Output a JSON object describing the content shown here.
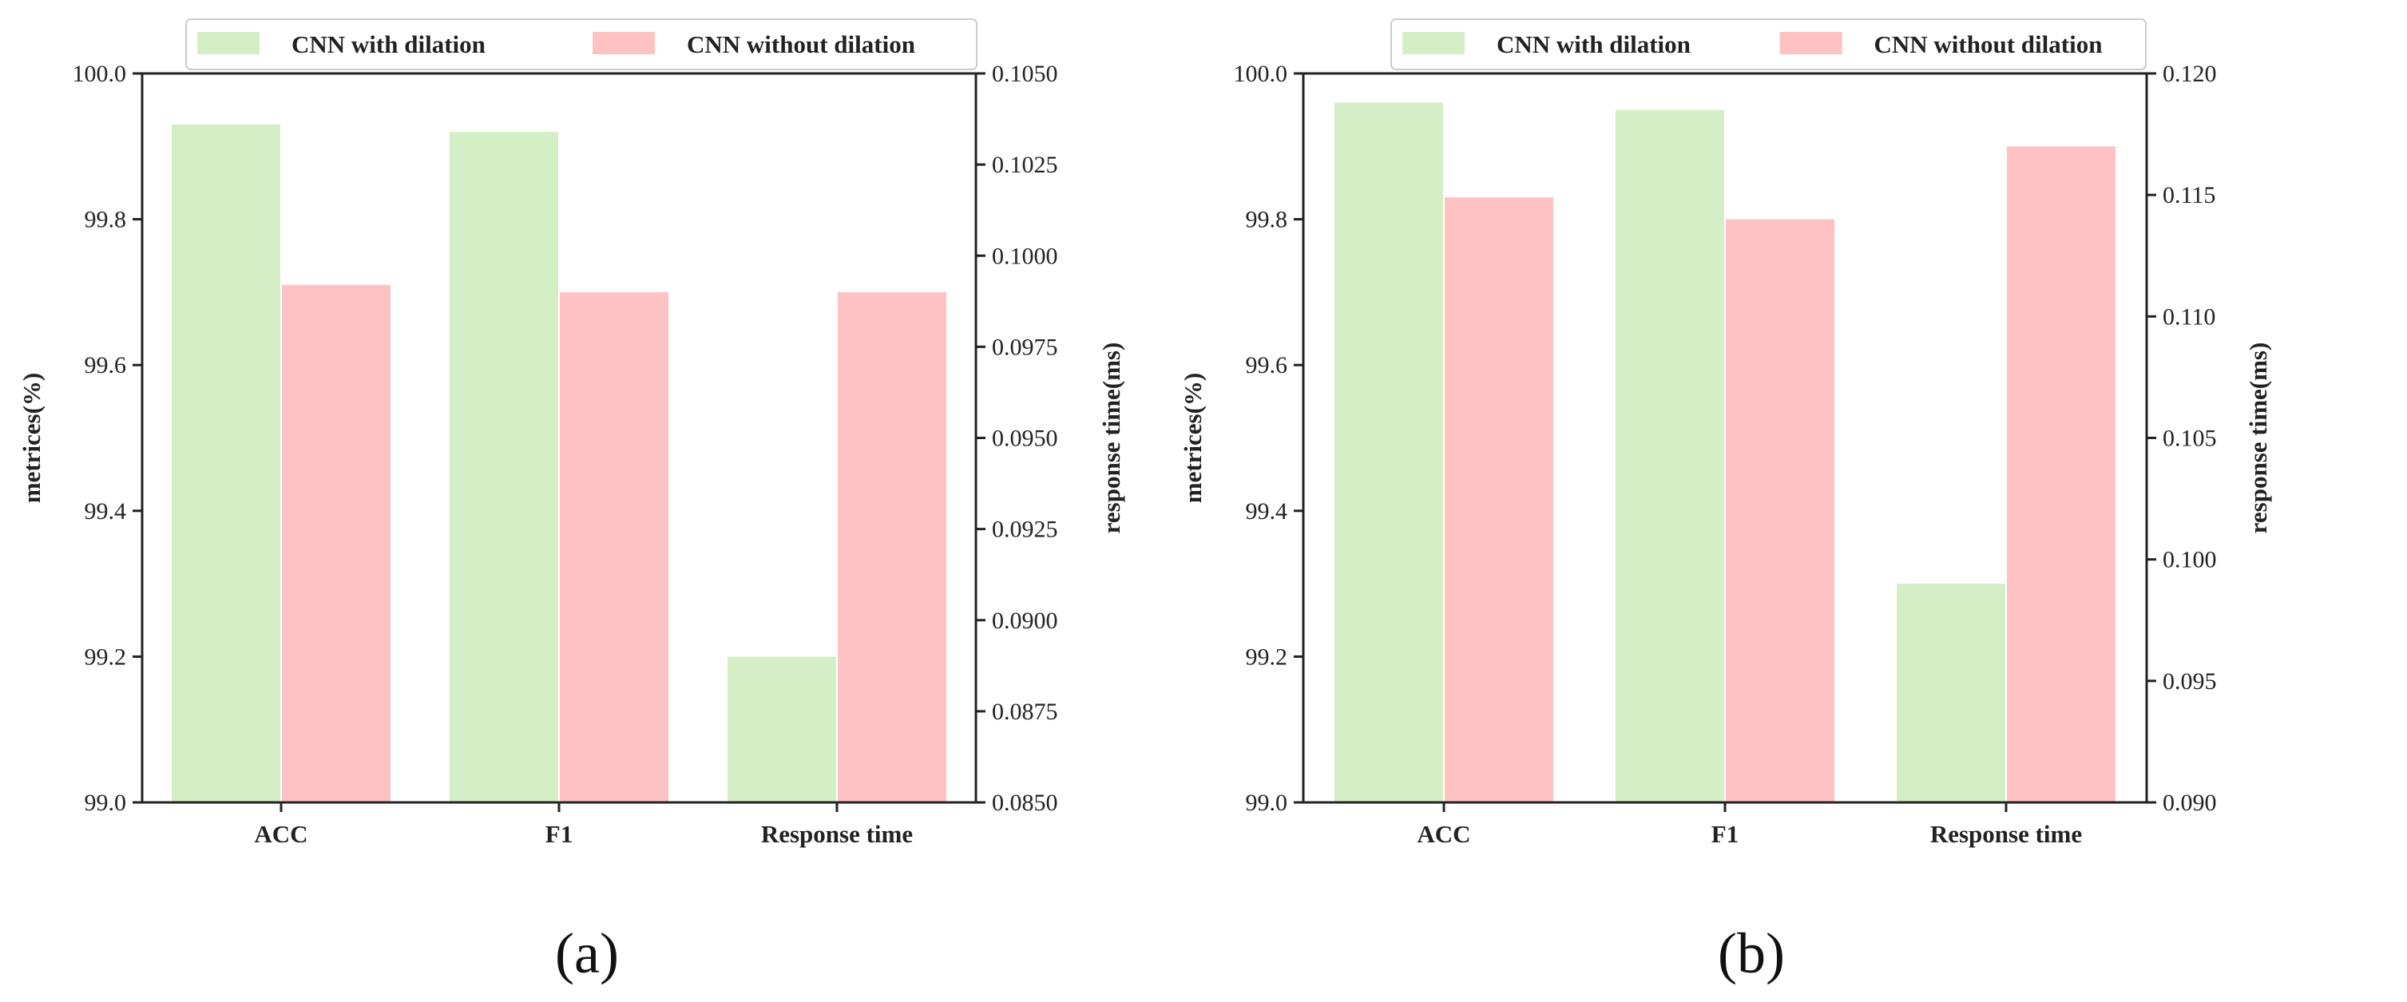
{
  "colors": {
    "with_dilation": "#d4efc5",
    "without_dilation": "#ffc2c2",
    "axis": "#222222"
  },
  "panel_labels": [
    "(a)",
    "(b)"
  ],
  "chart_data": [
    {
      "type": "bar",
      "panel": "(a)",
      "categories": [
        "ACC",
        "F1",
        "Response time"
      ],
      "series": [
        {
          "name": "CNN with dilation",
          "values": [
            99.93,
            99.92,
            0.089
          ],
          "axes": [
            "left",
            "left",
            "right"
          ]
        },
        {
          "name": "CNN without dilation",
          "values": [
            99.71,
            99.7,
            0.099
          ],
          "axes": [
            "left",
            "left",
            "right"
          ]
        }
      ],
      "ylabel": "metrices(%)",
      "ylim": [
        99.0,
        100.0
      ],
      "yticks": [
        "99.0",
        "99.2",
        "99.4",
        "99.6",
        "99.8",
        "100.0"
      ],
      "y2label": "response time(ms)",
      "y2lim": [
        0.085,
        0.105
      ],
      "y2ticks": [
        "0.0850",
        "0.0875",
        "0.0900",
        "0.0925",
        "0.0950",
        "0.0975",
        "0.1000",
        "0.1025",
        "0.1050"
      ],
      "legend_position": "top",
      "grid": false
    },
    {
      "type": "bar",
      "panel": "(b)",
      "categories": [
        "ACC",
        "F1",
        "Response time"
      ],
      "series": [
        {
          "name": "CNN with dilation",
          "values": [
            99.96,
            99.95,
            0.099
          ],
          "axes": [
            "left",
            "left",
            "right"
          ]
        },
        {
          "name": "CNN without dilation",
          "values": [
            99.83,
            99.8,
            0.117
          ],
          "axes": [
            "left",
            "left",
            "right"
          ]
        }
      ],
      "ylabel": "metrices(%)",
      "ylim": [
        99.0,
        100.0
      ],
      "yticks": [
        "99.0",
        "99.2",
        "99.4",
        "99.6",
        "99.8",
        "100.0"
      ],
      "y2label": "response time(ms)",
      "y2lim": [
        0.09,
        0.12
      ],
      "y2ticks": [
        "0.090",
        "0.095",
        "0.100",
        "0.105",
        "0.110",
        "0.115",
        "0.120"
      ],
      "legend_position": "top",
      "grid": false
    }
  ]
}
